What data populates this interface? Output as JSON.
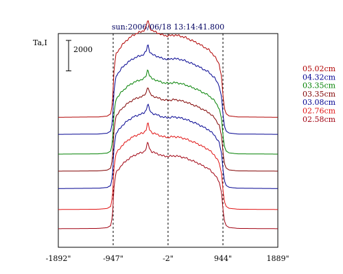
{
  "chart_data": {
    "type": "line",
    "title": "sun:2006/06/18 13:14:41.800",
    "ylabel": "Ta,I",
    "scale_bar_label": "2000",
    "scale_bar_value": 2000,
    "xlim": [
      -1892,
      1889
    ],
    "ylim": [
      0,
      14040
    ],
    "x_ticks": [
      {
        "value": -1892,
        "label": "-1892\""
      },
      {
        "value": -947,
        "label": "-947\""
      },
      {
        "value": -2,
        "label": "-2\""
      },
      {
        "value": 944,
        "label": "944\""
      },
      {
        "value": 1889,
        "label": "1889\""
      }
    ],
    "reference_lines_x": [
      -947,
      -2,
      944
    ],
    "x": [
      -1892,
      -1200,
      -1050,
      -990,
      -960,
      -930,
      -900,
      -800,
      -700,
      -600,
      -500,
      -420,
      -380,
      -350,
      -320,
      -280,
      -200,
      -100,
      -2,
      100,
      200,
      300,
      400,
      500,
      600,
      700,
      800,
      880,
      920,
      945,
      970,
      1000,
      1050,
      1200,
      1889
    ],
    "profile": [
      0,
      20,
      70,
      200,
      800,
      2800,
      3600,
      4100,
      4450,
      4700,
      4850,
      4950,
      5150,
      5600,
      5150,
      4950,
      4850,
      4700,
      4650,
      4700,
      4650,
      4550,
      4400,
      4250,
      4050,
      3850,
      3500,
      3000,
      2300,
      1200,
      500,
      200,
      80,
      20,
      0
    ],
    "series": [
      {
        "name": "05.02cm",
        "color": "#b00000",
        "offset": 8540,
        "scale": 1.15
      },
      {
        "name": "04.32cm",
        "color": "#000090",
        "offset": 7420,
        "scale": 1.06
      },
      {
        "name": "03.35cm",
        "color": "#008000",
        "offset": 6120,
        "scale": 1.0
      },
      {
        "name": "03.35cm",
        "color": "#800000",
        "offset": 5000,
        "scale": 1.0
      },
      {
        "name": "03.08cm",
        "color": "#000090",
        "offset": 3860,
        "scale": 1.0
      },
      {
        "name": "02.76cm",
        "color": "#e01010",
        "offset": 2480,
        "scale": 1.02
      },
      {
        "name": "02.58cm",
        "color": "#a00010",
        "offset": 1220,
        "scale": 1.02
      }
    ],
    "legend_position": "right",
    "grid": false
  }
}
